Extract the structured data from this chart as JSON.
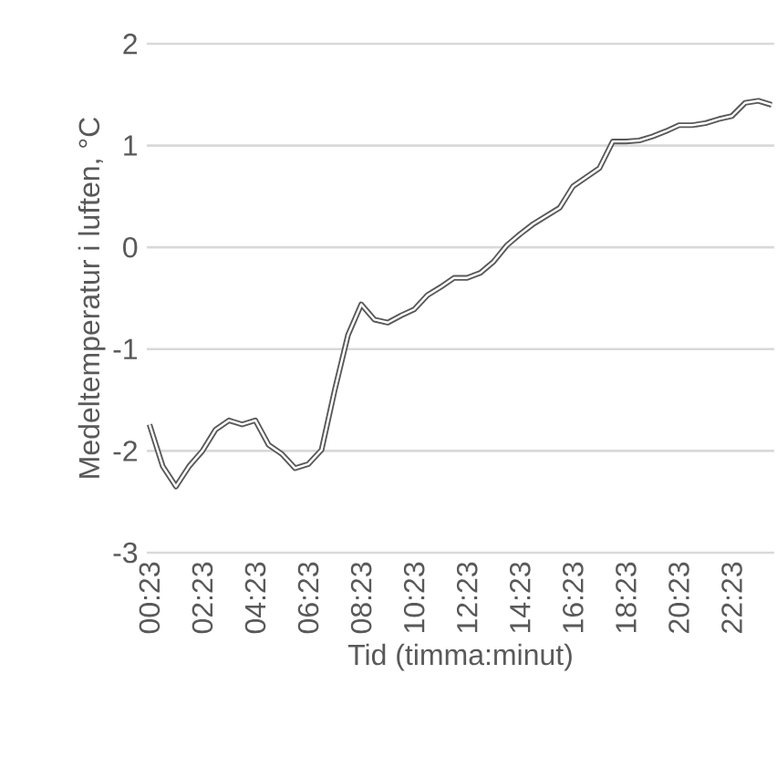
{
  "chart_data": {
    "type": "line",
    "xlabel": "Tid (timma:minut)",
    "ylabel": "Medeltemperatur i luften, °C",
    "categories": [
      "00:23",
      null,
      null,
      null,
      "02:23",
      null,
      null,
      null,
      "04:23",
      null,
      null,
      null,
      "06:23",
      null,
      null,
      null,
      "08:23",
      null,
      null,
      null,
      "10:23",
      null,
      null,
      null,
      "12:23",
      null,
      null,
      null,
      "14:23",
      null,
      null,
      null,
      "16:23",
      null,
      null,
      null,
      "18:23",
      null,
      null,
      null,
      "20:23",
      null,
      null,
      null,
      "22:23",
      null,
      null,
      null
    ],
    "series": [
      {
        "color": "#595959",
        "values": [
          -1.74,
          -2.15,
          -2.35,
          -2.15,
          -2.0,
          -1.79,
          -1.7,
          -1.74,
          -1.7,
          -1.94,
          -2.03,
          -2.17,
          -2.13,
          -1.99,
          -1.4,
          -0.86,
          -0.56,
          -0.71,
          -0.74,
          -0.67,
          -0.61,
          -0.47,
          -0.39,
          -0.3,
          -0.3,
          -0.25,
          -0.14,
          0.02,
          0.13,
          0.23,
          0.31,
          0.39,
          0.6,
          0.69,
          0.78,
          1.04,
          1.04,
          1.05,
          1.09,
          1.14,
          1.2,
          1.2,
          1.22,
          1.26,
          1.29,
          1.42,
          1.44,
          1.4
        ]
      }
    ],
    "ylim": [
      -3,
      2
    ],
    "yticks": [
      -3,
      -2,
      -1,
      0,
      1,
      2
    ],
    "grid": "y",
    "legend": false,
    "marker": "none",
    "line_style": "solid"
  }
}
